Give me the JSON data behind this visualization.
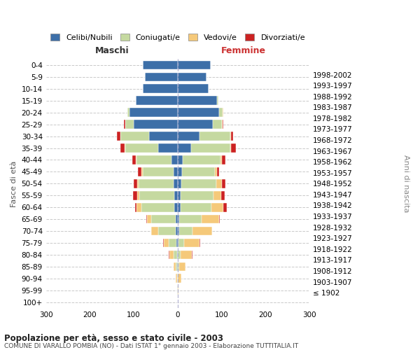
{
  "age_groups": [
    "100+",
    "95-99",
    "90-94",
    "85-89",
    "80-84",
    "75-79",
    "70-74",
    "65-69",
    "60-64",
    "55-59",
    "50-54",
    "45-49",
    "40-44",
    "35-39",
    "30-34",
    "25-29",
    "20-24",
    "15-19",
    "10-14",
    "5-9",
    "0-4"
  ],
  "birth_years": [
    "≤ 1902",
    "1903-1907",
    "1908-1912",
    "1913-1917",
    "1918-1922",
    "1923-1927",
    "1928-1932",
    "1933-1937",
    "1938-1942",
    "1943-1947",
    "1948-1952",
    "1953-1957",
    "1958-1962",
    "1963-1967",
    "1968-1972",
    "1973-1977",
    "1978-1982",
    "1983-1987",
    "1988-1992",
    "1993-1997",
    "1998-2002"
  ],
  "males": {
    "celibi": [
      0,
      0,
      0,
      1,
      2,
      3,
      5,
      5,
      7,
      8,
      9,
      10,
      14,
      45,
      65,
      100,
      110,
      95,
      80,
      75,
      80
    ],
    "coniugati": [
      0,
      1,
      2,
      4,
      8,
      17,
      40,
      55,
      75,
      80,
      80,
      70,
      80,
      75,
      65,
      20,
      5,
      1,
      0,
      0,
      0
    ],
    "vedovi": [
      0,
      1,
      3,
      5,
      9,
      12,
      15,
      10,
      12,
      5,
      3,
      2,
      2,
      1,
      1,
      0,
      0,
      0,
      0,
      0,
      0
    ],
    "divorziati": [
      0,
      0,
      0,
      0,
      1,
      1,
      1,
      2,
      3,
      8,
      8,
      8,
      8,
      10,
      8,
      2,
      0,
      0,
      0,
      0,
      0
    ]
  },
  "females": {
    "nubili": [
      0,
      0,
      0,
      0,
      1,
      2,
      3,
      4,
      6,
      6,
      8,
      10,
      12,
      30,
      50,
      80,
      95,
      90,
      70,
      65,
      75
    ],
    "coniugate": [
      0,
      0,
      1,
      3,
      6,
      13,
      30,
      50,
      70,
      75,
      80,
      75,
      85,
      90,
      70,
      20,
      8,
      2,
      0,
      0,
      0
    ],
    "vedove": [
      1,
      2,
      8,
      15,
      25,
      35,
      45,
      40,
      28,
      18,
      12,
      5,
      4,
      2,
      2,
      2,
      1,
      0,
      0,
      0,
      0
    ],
    "divorziate": [
      0,
      0,
      0,
      0,
      1,
      1,
      1,
      2,
      8,
      8,
      8,
      4,
      8,
      10,
      5,
      2,
      0,
      0,
      0,
      0,
      0
    ]
  },
  "colors": {
    "celibi": "#3d6fa8",
    "coniugati": "#c5d9a0",
    "vedovi": "#f5c97a",
    "divorziati": "#cc2222"
  },
  "xlim": 300,
  "title": "Popolazione per età, sesso e stato civile - 2003",
  "subtitle": "COMUNE DI VARALLO POMBIA (NO) - Dati ISTAT 1° gennaio 2003 - Elaborazione TUTTITALIA.IT",
  "ylabel": "Fasce di età",
  "ylabel_right": "Anni di nascita",
  "legend_labels": [
    "Celibi/Nubili",
    "Coniugati/e",
    "Vedovi/e",
    "Divorziati/e"
  ],
  "background_color": "#ffffff",
  "grid_color": "#bbbbbb"
}
